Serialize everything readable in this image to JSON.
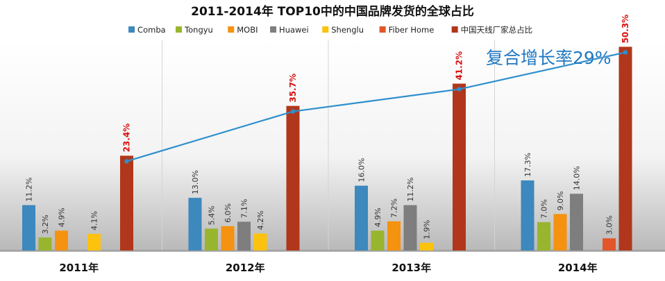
{
  "chart_data": {
    "type": "bar",
    "title": "2011-2014年 TOP10中的中国品牌发货的全球占比",
    "categories": [
      "2011年",
      "2012年",
      "2013年",
      "2014年"
    ],
    "series": [
      {
        "name": "Comba",
        "color": "#3d88bd",
        "values": [
          11.2,
          13.0,
          16.0,
          17.3
        ],
        "labels": [
          "11.2%",
          "13.0%",
          "16.0%",
          "17.3%"
        ]
      },
      {
        "name": "Tongyu",
        "color": "#98b52e",
        "values": [
          3.2,
          5.4,
          4.9,
          7.0
        ],
        "labels": [
          "3.2%",
          "5.4%",
          "4.9%",
          "7.0%"
        ]
      },
      {
        "name": "MOBI",
        "color": "#f5920f",
        "values": [
          4.9,
          6.0,
          7.2,
          9.0
        ],
        "labels": [
          "4.9%",
          "6.0%",
          "7.2%",
          "9.0%"
        ]
      },
      {
        "name": "Huawei",
        "color": "#7e7e7e",
        "values": [
          null,
          7.1,
          11.2,
          14.0
        ],
        "labels": [
          "",
          "7.1%",
          "11.2%",
          "14.0%"
        ]
      },
      {
        "name": "Shenglu",
        "color": "#fcc20e",
        "values": [
          4.1,
          4.2,
          1.9,
          null
        ],
        "labels": [
          "4.1%",
          "4.2%",
          "1.9%",
          ""
        ]
      },
      {
        "name": "Fiber Home",
        "color": "#e3552a",
        "values": [
          null,
          null,
          null,
          3.0
        ],
        "labels": [
          "",
          "",
          "",
          "3.0%"
        ]
      },
      {
        "name": "中国天线厂家总占比",
        "color": "#b0371b",
        "values": [
          23.4,
          35.7,
          41.2,
          50.3
        ],
        "labels": [
          "23.4%",
          "35.7%",
          "41.2%",
          "50.3%"
        ],
        "label_color": "#d9110f"
      }
    ],
    "trend_line": {
      "series": "中国天线厂家总占比",
      "color": "#2e8fcd"
    },
    "annotation": {
      "text": "复合增长率29%",
      "color": "#1f78c2"
    },
    "ylim": [
      0,
      55
    ],
    "legend_position": "top",
    "grid": false
  }
}
